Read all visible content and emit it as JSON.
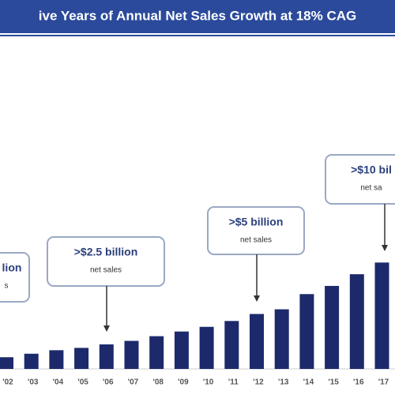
{
  "chart_data": {
    "type": "bar",
    "title": "ive Years of Annual Net Sales Growth at 18% CAG",
    "categories": [
      "'02",
      "'03",
      "'04",
      "'05",
      "'06",
      "'07",
      "'08",
      "'09",
      "'10",
      "'11",
      "'12",
      "'13",
      "'14",
      "'15",
      "'16",
      "'17"
    ],
    "values": [
      1.5,
      1.8,
      2.1,
      2.3,
      2.6,
      2.9,
      3.3,
      3.7,
      4.1,
      4.6,
      5.2,
      5.6,
      6.9,
      7.6,
      8.6,
      9.6
    ],
    "color": "#1c2a6b",
    "annotations": [
      {
        "lines": [
          "lion",
          "s"
        ]
      },
      {
        "lines": [
          ">$2.5 billion",
          "net sales"
        ]
      },
      {
        "lines": [
          ">$5 billion",
          "net sales"
        ]
      },
      {
        "lines": [
          ">$10 bil",
          "net sa"
        ]
      }
    ]
  }
}
